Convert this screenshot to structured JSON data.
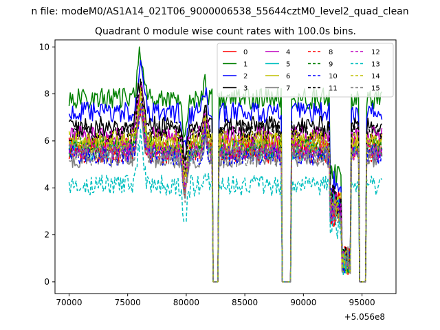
{
  "chart_data": {
    "type": "line",
    "suptitle": "n file: modeM0/AS1A14_021T06_9000006538_55644cztM0_level2_quad_clean",
    "title": "Quadrant 0 module wise count rates with 100.0s bins.",
    "xlabel": "",
    "ylabel": "",
    "x_offset_label": "+5.056e8",
    "xlim": [
      68800,
      97900
    ],
    "ylim": [
      -0.5,
      10.3
    ],
    "x_ticks": [
      70000,
      75000,
      80000,
      85000,
      90000,
      95000
    ],
    "x_tick_labels": [
      "70000",
      "75000",
      "80000",
      "85000",
      "90000",
      "95000"
    ],
    "y_ticks": [
      0,
      2,
      4,
      6,
      8,
      10
    ],
    "y_tick_labels": [
      "0",
      "2",
      "4",
      "6",
      "8",
      "10"
    ],
    "grid": false,
    "legend_position": "top-right",
    "series": [
      {
        "name": "0",
        "color": "#ff0000",
        "dash": "solid",
        "base": 5.8
      },
      {
        "name": "1",
        "color": "#008000",
        "dash": "solid",
        "base": 7.8
      },
      {
        "name": "2",
        "color": "#0000ff",
        "dash": "solid",
        "base": 7.2
      },
      {
        "name": "3",
        "color": "#000000",
        "dash": "solid",
        "base": 6.6
      },
      {
        "name": "4",
        "color": "#bf00bf",
        "dash": "solid",
        "base": 6.2
      },
      {
        "name": "5",
        "color": "#00bfbf",
        "dash": "solid",
        "base": 5.6
      },
      {
        "name": "6",
        "color": "#bfbf00",
        "dash": "solid",
        "base": 5.9
      },
      {
        "name": "7",
        "color": "#808080",
        "dash": "solid",
        "base": 5.3
      },
      {
        "name": "8",
        "color": "#ff0000",
        "dash": "dashed",
        "base": 5.5
      },
      {
        "name": "9",
        "color": "#008000",
        "dash": "dashed",
        "base": 5.7
      },
      {
        "name": "10",
        "color": "#0000ff",
        "dash": "dashed",
        "base": 5.4
      },
      {
        "name": "11",
        "color": "#000000",
        "dash": "dashed",
        "base": 6.4
      },
      {
        "name": "12",
        "color": "#bf00bf",
        "dash": "dashed",
        "base": 5.6
      },
      {
        "name": "13",
        "color": "#00bfbf",
        "dash": "dashed",
        "base": 4.1
      },
      {
        "name": "14",
        "color": "#bfbf00",
        "dash": "dashed",
        "base": 6.0
      },
      {
        "name": "15",
        "color": "#808080",
        "dash": "dashed",
        "base": 5.4
      }
    ],
    "x_range": [
      70000,
      96700
    ],
    "bin_seconds": 100,
    "saa_gaps": [
      [
        82300,
        82700
      ],
      [
        88200,
        88900
      ],
      [
        94800,
        95300
      ]
    ],
    "low_gaps": [
      [
        93300,
        94000
      ]
    ]
  }
}
